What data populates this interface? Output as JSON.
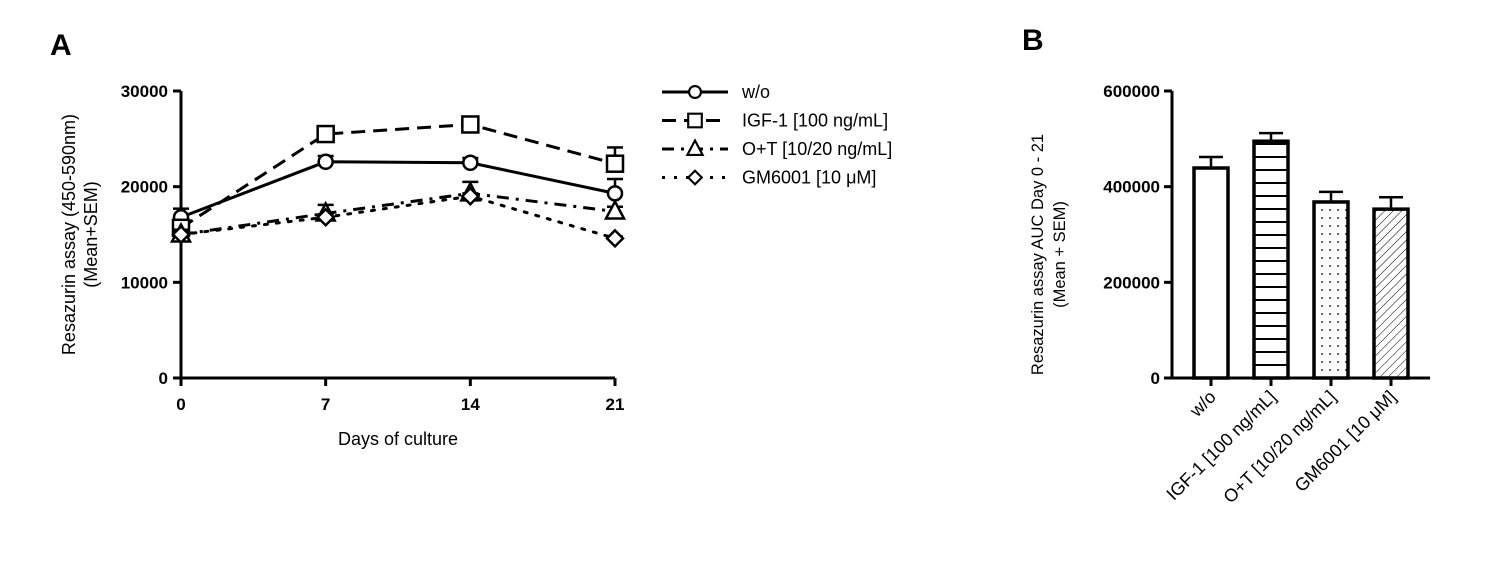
{
  "chart_data": [
    {
      "type": "line",
      "panel_label": "A",
      "xlabel": "Days of culture",
      "ylabel": [
        "Resazurin assay (450-590nm)",
        "(Mean+SEM)"
      ],
      "x": [
        0,
        7,
        14,
        21
      ],
      "xticks": [
        "0",
        "7",
        "14",
        "21"
      ],
      "yticks": [
        "0",
        "10000",
        "20000",
        "30000"
      ],
      "xlim": [
        0,
        21
      ],
      "ylim": [
        0,
        30000
      ],
      "grid": false,
      "legend_placement": "right",
      "series": [
        {
          "name": "w/o",
          "values": [
            16800,
            22600,
            22500,
            19300
          ],
          "sem": [
            900,
            600,
            500,
            1500
          ],
          "marker": "circle",
          "line": "solid"
        },
        {
          "name": "IGF-1 [100 ng/mL]",
          "values": [
            15700,
            25500,
            26500,
            22400
          ],
          "sem": [
            500,
            800,
            400,
            1700
          ],
          "marker": "square",
          "line": "dashed"
        },
        {
          "name": "O+T [10/20 ng/mL]",
          "values": [
            15000,
            17200,
            19300,
            17400
          ],
          "sem": [
            500,
            900,
            1200,
            500
          ],
          "marker": "triangle",
          "line": "dash-dot"
        },
        {
          "name": "GM6001 [10 μM]",
          "values": [
            15000,
            16800,
            19000,
            14600
          ],
          "sem": [
            300,
            300,
            300,
            200
          ],
          "marker": "diamond",
          "line": "dotted"
        }
      ]
    },
    {
      "type": "bar",
      "panel_label": "B",
      "ylabel": [
        "Resazurin assay AUC Day 0 - 21",
        "(Mean + SEM)"
      ],
      "categories": [
        "w/o",
        "IGF-1 [100 ng/mL]",
        "O+T [10/20 ng/mL]",
        "GM6001 [10 μM]"
      ],
      "values": [
        439000,
        495000,
        368000,
        353000
      ],
      "sem": [
        23000,
        17000,
        21000,
        25000
      ],
      "fills": [
        "none",
        "horizontal-lines",
        "dots",
        "diagonal-hatch"
      ],
      "yticks": [
        "0",
        "200000",
        "400000",
        "600000"
      ],
      "ylim": [
        0,
        600000
      ],
      "grid": false
    }
  ]
}
